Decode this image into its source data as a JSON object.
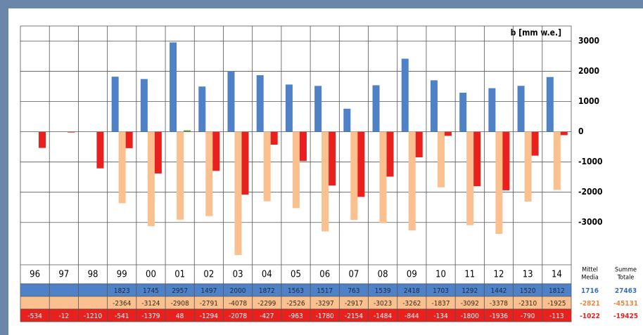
{
  "chart_data": {
    "type": "bar",
    "unit_label": "b [mm w.e.]",
    "categories": [
      "96",
      "97",
      "98",
      "99",
      "00",
      "01",
      "02",
      "03",
      "04",
      "05",
      "06",
      "07",
      "08",
      "09",
      "10",
      "11",
      "12",
      "13",
      "14"
    ],
    "series": [
      {
        "color": "#4f81c6",
        "text_color": "#1a2a44",
        "summary_color": "#3c6fb5",
        "values": [
          null,
          null,
          null,
          1823,
          1745,
          2957,
          1497,
          2000,
          1872,
          1563,
          1517,
          763,
          1539,
          2418,
          1703,
          1292,
          1442,
          1520,
          1812
        ],
        "mean": 1716,
        "total": 27463
      },
      {
        "color": "#fac08f",
        "text_color": "#3a2a1a",
        "summary_color": "#e6893a",
        "values": [
          null,
          null,
          null,
          -2364,
          -3124,
          -2908,
          -2791,
          -4078,
          -2299,
          -2526,
          -3297,
          -2917,
          -3023,
          -3262,
          -1837,
          -3092,
          -3378,
          -2310,
          -1925
        ],
        "mean": -2821,
        "total": -45131
      },
      {
        "color": "#e8201e",
        "positive_color": "#5ba336",
        "text_color": "#ffffff",
        "summary_color": "#e8201e",
        "values": [
          -534,
          -12,
          -1210,
          -541,
          -1379,
          48,
          -1294,
          -2078,
          -427,
          -963,
          -1780,
          -2154,
          -1484,
          -844,
          -134,
          -1800,
          -1936,
          -790,
          -113
        ],
        "mean": -1022,
        "total": -19425
      }
    ],
    "mean_label": [
      "Mittel",
      "Media"
    ],
    "total_label": [
      "Summe",
      "Totale"
    ],
    "ylim": [
      -4400,
      3500
    ],
    "yticks": [
      3000,
      2000,
      1000,
      0,
      -1000,
      -2000,
      -3000
    ],
    "grid": true
  }
}
